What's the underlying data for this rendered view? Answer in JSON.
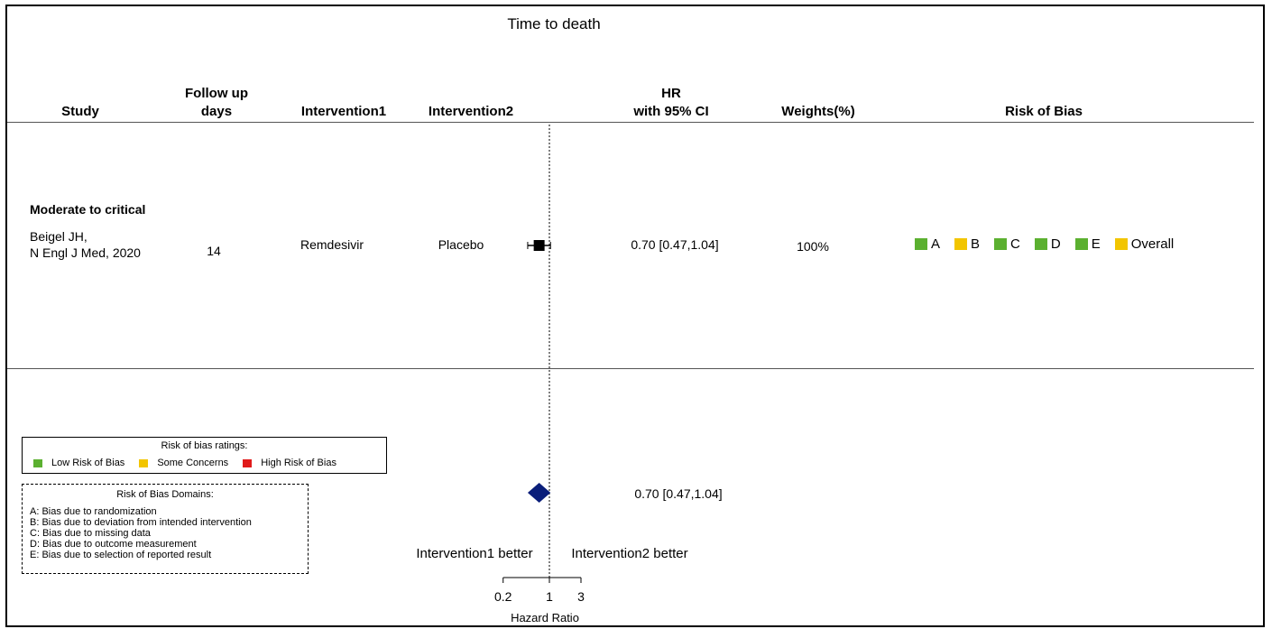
{
  "title": "Time to death",
  "headers": {
    "study": "Study",
    "followup_1": "Follow up",
    "followup_2": "days",
    "intervention1": "Intervention1",
    "intervention2": "Intervention2",
    "hr_1": "HR",
    "hr_2": "with 95% CI",
    "weights": "Weights(%)",
    "rob": "Risk of Bias"
  },
  "subgroup": "Moderate to critical",
  "study": {
    "name_1": "Beigel JH,",
    "name_2": "N Engl J Med, 2020",
    "followup": "14",
    "intervention1": "Remdesivir",
    "intervention2": "Placebo",
    "hr_text": "0.70  [0.47,1.04]",
    "weight": "100%",
    "rob": [
      {
        "label": "A",
        "color": "#5BB030"
      },
      {
        "label": "B",
        "color": "#F2C500"
      },
      {
        "label": "C",
        "color": "#5BB030"
      },
      {
        "label": "D",
        "color": "#5BB030"
      },
      {
        "label": "E",
        "color": "#5BB030"
      },
      {
        "label": "Overall",
        "color": "#F2C500"
      }
    ]
  },
  "pooled_hr_text": "0.70  [0.47,1.04]",
  "favours_left": "Intervention1 better",
  "favours_right": "Intervention2 better",
  "legend_ratings": {
    "title": "Risk of bias ratings:",
    "items": [
      {
        "label": "Low Risk of Bias",
        "color": "#5BB030"
      },
      {
        "label": "Some Concerns",
        "color": "#F2C500"
      },
      {
        "label": "High Risk of Bias",
        "color": "#E01B1B"
      }
    ]
  },
  "legend_domains": {
    "title": "Risk of Bias Domains:",
    "items": [
      "A: Bias due to randomization",
      "B: Bias due to deviation from intended intervention",
      "C: Bias due to missing data",
      "D: Bias due to outcome measurement",
      "E: Bias due to selection of reported result"
    ]
  },
  "chart_data": {
    "type": "forest",
    "title": "Time to death",
    "xlabel": "Hazard Ratio",
    "x_scale": "log",
    "xticks": [
      0.2,
      1,
      3
    ],
    "xtick_labels": [
      "0.2",
      "1",
      "3"
    ],
    "reference_line": 1,
    "studies": [
      {
        "subgroup": "Moderate to critical",
        "study": "Beigel JH, N Engl J Med, 2020",
        "followup_days": 14,
        "intervention1": "Remdesivir",
        "intervention2": "Placebo",
        "hr": 0.7,
        "ci_low": 0.47,
        "ci_high": 1.04,
        "weight_pct": 100
      }
    ],
    "pooled": {
      "hr": 0.7,
      "ci_low": 0.47,
      "ci_high": 1.04
    },
    "colors": {
      "study_marker": "#000000",
      "pooled_marker": "#0A1E7A"
    }
  }
}
